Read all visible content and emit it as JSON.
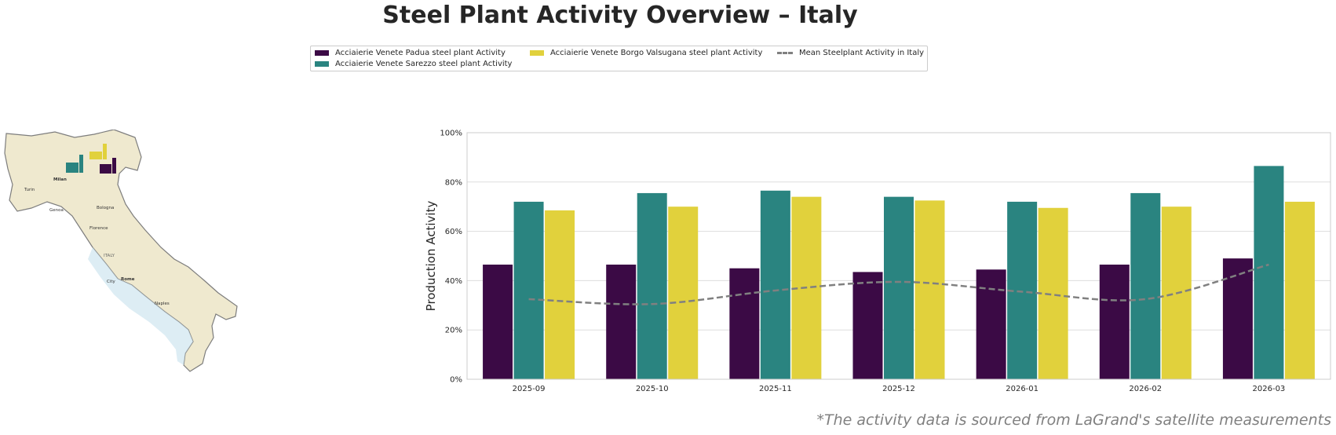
{
  "title": "Steel Plant Activity Overview – Italy",
  "footnote": "*The activity data is sourced from LaGrand's satellite measurements",
  "colors": {
    "padua": "#3b0a45",
    "sarezzo": "#2a8480",
    "borgo": "#e1d13c",
    "mean": "#808080"
  },
  "legend": [
    {
      "label": "Acciaierie Venete Padua steel plant Activity",
      "color": "#3b0a45",
      "kind": "bar"
    },
    {
      "label": "Acciaierie Venete Sarezzo steel plant Activity",
      "color": "#2a8480",
      "kind": "bar"
    },
    {
      "label": "Acciaierie Venete Borgo Valsugana steel plant Activity",
      "color": "#e1d13c",
      "kind": "bar"
    },
    {
      "label": "Mean Steelplant Activity in Italy",
      "color": "#808080",
      "kind": "line"
    }
  ],
  "map": {
    "country_label": "ITALY",
    "cities": [
      "Milan",
      "Turin",
      "Genoa",
      "Bologna",
      "Florence",
      "Rome",
      "Naples",
      "City"
    ],
    "icons": [
      "factory-icon-sarezzo",
      "factory-icon-borgo",
      "factory-icon-padua"
    ]
  },
  "chart_data": {
    "type": "bar",
    "categories": [
      "2025-09",
      "2025-10",
      "2025-11",
      "2025-12",
      "2026-01",
      "2026-02",
      "2026-03"
    ],
    "series": [
      {
        "name": "Acciaierie Venete Padua steel plant Activity",
        "values": [
          46.5,
          46.5,
          45,
          43.5,
          44.5,
          46.5,
          49
        ]
      },
      {
        "name": "Acciaierie Venete Sarezzo steel plant Activity",
        "values": [
          72,
          75.5,
          76.5,
          74,
          72,
          75.5,
          86.5
        ]
      },
      {
        "name": "Acciaierie Venete Borgo Valsugana steel plant Activity",
        "values": [
          68.5,
          70,
          74,
          72.5,
          69.5,
          70,
          72
        ]
      }
    ],
    "line_series": {
      "name": "Mean Steelplant Activity in Italy",
      "values": [
        32.5,
        30.5,
        36,
        39.5,
        35.5,
        32.5,
        46.5
      ],
      "style": "dashed"
    },
    "ylabel": "Production Activity",
    "xlabel": "",
    "ylim": [
      0,
      100
    ],
    "yticks": [
      "0%",
      "20%",
      "40%",
      "60%",
      "80%",
      "100%"
    ],
    "grid": "horizontal",
    "legend_position": "top-center"
  }
}
